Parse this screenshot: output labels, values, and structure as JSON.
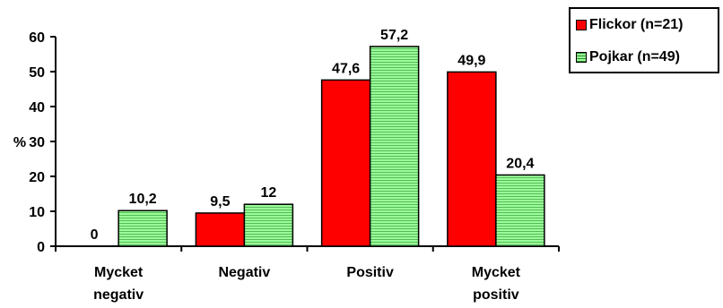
{
  "chart_data": {
    "type": "bar",
    "categories": [
      [
        "Mycket",
        "negativ"
      ],
      [
        "Negativ"
      ],
      [
        "Positiv"
      ],
      [
        "Mycket",
        "positiv"
      ]
    ],
    "series": [
      {
        "name": "Flickor (n=21)",
        "color": "#ff0000",
        "values": [
          0,
          9.5,
          47.6,
          49.9
        ],
        "labels": [
          "0",
          "9,5",
          "47,6",
          "49,9"
        ]
      },
      {
        "name": "Pojkar (n=49)",
        "color": "#99ff99",
        "values": [
          10.2,
          12,
          57.2,
          20.4
        ],
        "labels": [
          "10,2",
          "12",
          "57,2",
          "20,4"
        ]
      }
    ],
    "ylabel": "%",
    "ylim": [
      0,
      60
    ],
    "yticks": [
      "0",
      "10",
      "20",
      "30",
      "40",
      "50",
      "60"
    ],
    "grid": false,
    "legend": "top-right"
  }
}
